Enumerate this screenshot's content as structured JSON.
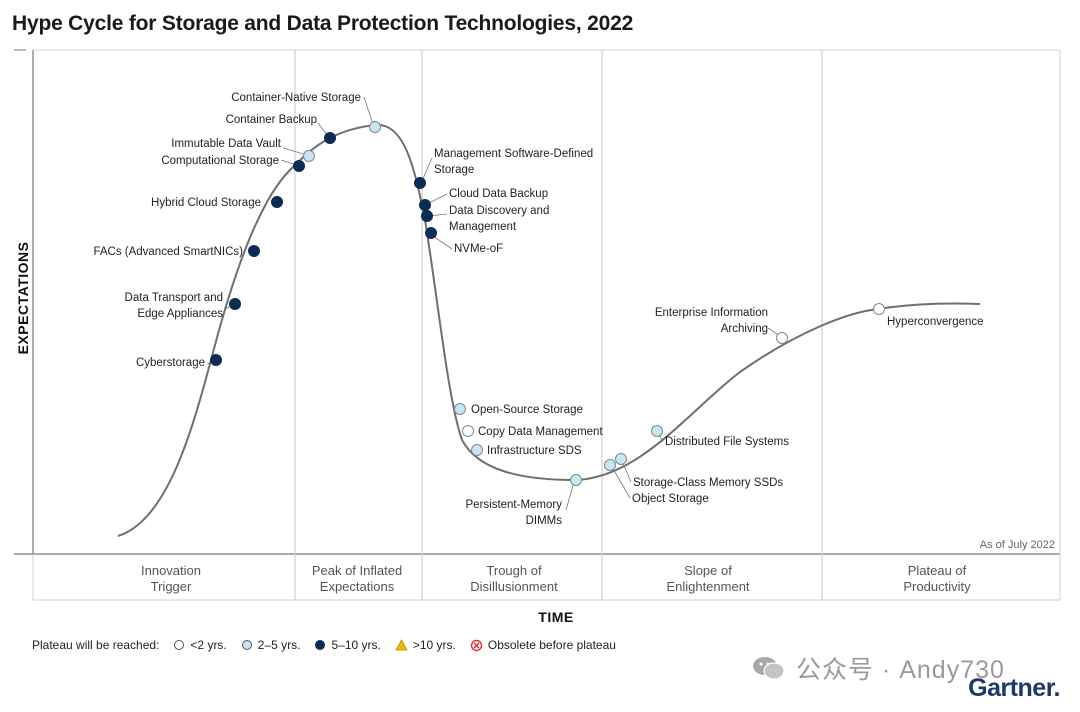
{
  "title": "Hype Cycle for Storage and Data Protection Technologies, 2022",
  "axes": {
    "y_label": "EXPECTATIONS",
    "x_label": "TIME"
  },
  "as_of": "As of July 2022",
  "phases": [
    {
      "line1": "Innovation",
      "line2": "Trigger"
    },
    {
      "line1": "Peak of Inflated",
      "line2": "Expectations"
    },
    {
      "line1": "Trough of",
      "line2": "Disillusionment"
    },
    {
      "line1": "Slope of",
      "line2": "Enlightenment"
    },
    {
      "line1": "Plateau of",
      "line2": "Productivity"
    }
  ],
  "legend": {
    "label": "Plateau will be reached:",
    "items": [
      {
        "symbol": "open-circle",
        "label": "<2 yrs."
      },
      {
        "symbol": "light-blue-circle",
        "label": "2–5 yrs."
      },
      {
        "symbol": "navy-circle",
        "label": "5–10 yrs."
      },
      {
        "symbol": "orange-triangle",
        "label": ">10 yrs."
      },
      {
        "symbol": "red-x-circle",
        "label": "Obsolete before plateau"
      }
    ]
  },
  "colors": {
    "lt2": "#ffffff",
    "y2to5": "#c8e6f3",
    "y5to10": "#0d2c54",
    "gt10": "#f5b400",
    "obsolete": "#e03030",
    "curve": "#6f6f6f"
  },
  "technologies": [
    {
      "name": "Cyberstorage",
      "plateau": "5-10"
    },
    {
      "name": "Data Transport and Edge Appliances",
      "plateau": "5-10"
    },
    {
      "name": "FACs (Advanced SmartNICs)",
      "plateau": "5-10"
    },
    {
      "name": "Hybrid Cloud Storage",
      "plateau": "5-10"
    },
    {
      "name": "Computational Storage",
      "plateau": "5-10"
    },
    {
      "name": "Immutable Data Vault",
      "plateau": "2-5"
    },
    {
      "name": "Container Backup",
      "plateau": "5-10"
    },
    {
      "name": "Container-Native Storage",
      "plateau": "2-5"
    },
    {
      "name": "Management Software-Defined Storage",
      "plateau": "5-10"
    },
    {
      "name": "Cloud Data Backup",
      "plateau": "5-10"
    },
    {
      "name": "Data Discovery and Management",
      "plateau": "5-10"
    },
    {
      "name": "NVMe-oF",
      "plateau": "5-10"
    },
    {
      "name": "Open-Source Storage",
      "plateau": "2-5"
    },
    {
      "name": "Copy Data Management",
      "plateau": "<2"
    },
    {
      "name": "Infrastructure SDS",
      "plateau": "2-5"
    },
    {
      "name": "Persistent-Memory DIMMs",
      "plateau": "2-5"
    },
    {
      "name": "Object Storage",
      "plateau": "2-5"
    },
    {
      "name": "Storage-Class Memory SSDs",
      "plateau": "2-5"
    },
    {
      "name": "Distributed File Systems",
      "plateau": "2-5"
    },
    {
      "name": "Enterprise Information Archiving",
      "plateau": "<2"
    },
    {
      "name": "Hyperconvergence",
      "plateau": "<2"
    }
  ],
  "watermark": "公众号 · Andy730",
  "brand": "Gartner."
}
